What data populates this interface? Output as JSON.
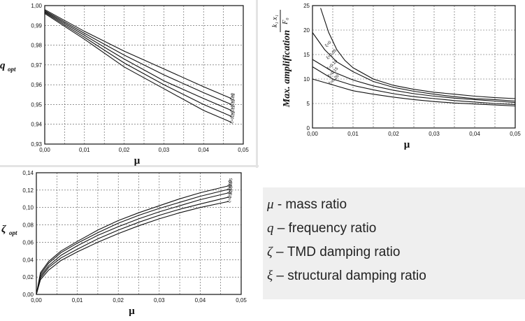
{
  "chart_data": [
    {
      "type": "line",
      "id": "q",
      "xlabel": "μ",
      "ylabel_symbol": "q",
      "ylabel_subscript": "opt",
      "xlim": [
        0,
        0.05
      ],
      "ylim": [
        0.93,
        1.0
      ],
      "xticks": [
        "0,00",
        "0,01",
        "0,02",
        "0,03",
        "0,04",
        "0,05"
      ],
      "yticks": [
        "0,93",
        "0,94",
        "0,95",
        "0,96",
        "0,97",
        "0,98",
        "0,99",
        "1,00"
      ],
      "grid": true,
      "series": [
        {
          "name": "ξ=0",
          "x": [
            0,
            0.01,
            0.02,
            0.03,
            0.04,
            0.047
          ],
          "values": [
            0.998,
            0.987,
            0.977,
            0.968,
            0.959,
            0.953
          ]
        },
        {
          "name": "ξ=0.05",
          "x": [
            0,
            0.01,
            0.02,
            0.03,
            0.04,
            0.047
          ],
          "values": [
            0.9975,
            0.986,
            0.975,
            0.965,
            0.956,
            0.95
          ]
        },
        {
          "name": "ξ=0.10",
          "x": [
            0,
            0.01,
            0.02,
            0.03,
            0.04,
            0.047
          ],
          "values": [
            0.997,
            0.985,
            0.973,
            0.962,
            0.953,
            0.947
          ]
        },
        {
          "name": "ξ=0.15",
          "x": [
            0,
            0.01,
            0.02,
            0.03,
            0.04,
            0.047
          ],
          "values": [
            0.9965,
            0.984,
            0.971,
            0.96,
            0.95,
            0.944
          ]
        },
        {
          "name": "ξ=0.20",
          "x": [
            0,
            0.01,
            0.02,
            0.03,
            0.04,
            0.047
          ],
          "values": [
            0.996,
            0.983,
            0.969,
            0.958,
            0.947,
            0.941
          ]
        }
      ]
    },
    {
      "type": "line",
      "id": "amp",
      "xlabel": "μ",
      "ylabel": "Max. amplification",
      "ylabel_fraction": {
        "numerator": "k₁ x₁",
        "denominator": "F₀"
      },
      "xlim": [
        0,
        0.05
      ],
      "ylim": [
        0,
        25
      ],
      "xticks": [
        "0,00",
        "0,01",
        "0,02",
        "0,03",
        "0,04",
        "0,05"
      ],
      "yticks": [
        "0",
        "5",
        "10",
        "15",
        "20",
        "25"
      ],
      "grid": true,
      "series": [
        {
          "name": "ξ=0",
          "x": [
            0.002,
            0.004,
            0.006,
            0.008,
            0.01,
            0.015,
            0.02,
            0.025,
            0.03,
            0.035,
            0.04,
            0.045,
            0.05
          ],
          "values": [
            24.5,
            19.5,
            16.0,
            13.8,
            12.3,
            10.0,
            8.7,
            7.9,
            7.3,
            6.9,
            6.5,
            6.2,
            6.0
          ]
        },
        {
          "name": "ξ=0.05",
          "x": [
            0,
            0.003,
            0.006,
            0.01,
            0.015,
            0.02,
            0.025,
            0.03,
            0.035,
            0.04,
            0.045,
            0.05
          ],
          "values": [
            19.5,
            16.0,
            13.5,
            11.5,
            9.5,
            8.3,
            7.5,
            6.9,
            6.4,
            6.0,
            5.8,
            5.5
          ]
        },
        {
          "name": "ξ=0.10",
          "x": [
            0,
            0.005,
            0.01,
            0.015,
            0.02,
            0.025,
            0.03,
            0.035,
            0.04,
            0.045,
            0.05
          ],
          "values": [
            14.0,
            11.5,
            9.8,
            8.6,
            7.7,
            7.0,
            6.5,
            6.1,
            5.8,
            5.5,
            5.2
          ]
        },
        {
          "name": "ξ=0.15",
          "x": [
            0,
            0.005,
            0.01,
            0.015,
            0.02,
            0.025,
            0.03,
            0.035,
            0.04,
            0.045,
            0.05
          ],
          "values": [
            12.5,
            10.0,
            8.7,
            7.8,
            7.0,
            6.4,
            6.0,
            5.6,
            5.3,
            5.0,
            4.8
          ]
        },
        {
          "name": "ξ=0.20",
          "x": [
            0,
            0.005,
            0.01,
            0.015,
            0.02,
            0.025,
            0.03,
            0.035,
            0.04,
            0.045,
            0.05
          ],
          "values": [
            10.0,
            8.8,
            7.6,
            6.9,
            6.3,
            5.8,
            5.4,
            5.1,
            4.9,
            4.7,
            4.5
          ]
        }
      ]
    },
    {
      "type": "line",
      "id": "zeta",
      "xlabel": "μ",
      "ylabel_symbol": "ζ",
      "ylabel_subscript": "opt",
      "xlim": [
        0,
        0.05
      ],
      "ylim": [
        0,
        0.14
      ],
      "xticks": [
        "0,00",
        "0,01",
        "0,02",
        "0,03",
        "0,04",
        "0,05"
      ],
      "yticks": [
        "0,00",
        "0,02",
        "0,04",
        "0,06",
        "0,08",
        "0,10",
        "0,12",
        "0,14"
      ],
      "grid": true,
      "series": [
        {
          "name": "ξ=0",
          "x": [
            0,
            0.001,
            0.003,
            0.006,
            0.01,
            0.015,
            0.02,
            0.025,
            0.03,
            0.035,
            0.04,
            0.047
          ],
          "values": [
            0,
            0.025,
            0.038,
            0.05,
            0.061,
            0.074,
            0.085,
            0.094,
            0.102,
            0.11,
            0.117,
            0.125
          ]
        },
        {
          "name": "ξ=0.05",
          "x": [
            0,
            0.001,
            0.003,
            0.006,
            0.01,
            0.015,
            0.02,
            0.025,
            0.03,
            0.035,
            0.04,
            0.047
          ],
          "values": [
            0,
            0.023,
            0.036,
            0.048,
            0.059,
            0.071,
            0.082,
            0.091,
            0.099,
            0.106,
            0.113,
            0.121
          ]
        },
        {
          "name": "ξ=0.10",
          "x": [
            0,
            0.001,
            0.003,
            0.006,
            0.01,
            0.015,
            0.02,
            0.025,
            0.03,
            0.035,
            0.04,
            0.047
          ],
          "values": [
            0,
            0.021,
            0.033,
            0.045,
            0.056,
            0.068,
            0.078,
            0.087,
            0.095,
            0.102,
            0.109,
            0.117
          ]
        },
        {
          "name": "ξ=0.15",
          "x": [
            0,
            0.001,
            0.003,
            0.006,
            0.01,
            0.015,
            0.02,
            0.025,
            0.03,
            0.035,
            0.04,
            0.047
          ],
          "values": [
            0,
            0.019,
            0.031,
            0.042,
            0.052,
            0.064,
            0.074,
            0.083,
            0.091,
            0.098,
            0.104,
            0.112
          ]
        },
        {
          "name": "ξ=0.20",
          "x": [
            0,
            0.001,
            0.003,
            0.006,
            0.01,
            0.015,
            0.02,
            0.025,
            0.03,
            0.035,
            0.04,
            0.047
          ],
          "values": [
            0,
            0.017,
            0.028,
            0.039,
            0.049,
            0.06,
            0.07,
            0.079,
            0.087,
            0.094,
            0.1,
            0.107
          ]
        }
      ]
    }
  ],
  "legend": {
    "items": [
      {
        "symbol": "μ",
        "text": " - mass ratio"
      },
      {
        "symbol": "q",
        "text": " – frequency ratio"
      },
      {
        "symbol": "ζ",
        "text": " – TMD damping ratio"
      },
      {
        "symbol": "ξ",
        "text": " – structural damping ratio"
      }
    ]
  },
  "colors": {
    "line": "#111111",
    "grid": "#555555",
    "legend_bg": "#efefef"
  }
}
